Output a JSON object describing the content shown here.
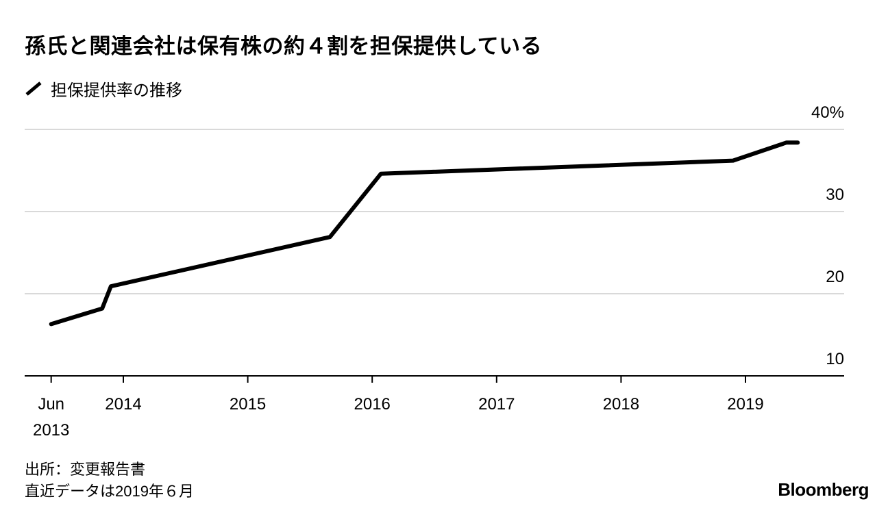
{
  "chart_data": {
    "type": "line",
    "title": "孫氏と関連会社は保有株の約４割を担保提供している",
    "legend": [
      "担保提供率の推移"
    ],
    "legend_placement": "top-left",
    "xlabel": "",
    "ylabel": "",
    "ylim": [
      10,
      40
    ],
    "yticks": [
      {
        "v": 10,
        "label": "10"
      },
      {
        "v": 20,
        "label": "20"
      },
      {
        "v": 30,
        "label": "30"
      },
      {
        "v": 40,
        "label": "40%"
      }
    ],
    "xticks": [
      {
        "v": 2013.42,
        "label": "Jun",
        "label2": "2013"
      },
      {
        "v": 2014,
        "label": "2014"
      },
      {
        "v": 2015,
        "label": "2015"
      },
      {
        "v": 2016,
        "label": "2016"
      },
      {
        "v": 2017,
        "label": "2017"
      },
      {
        "v": 2018,
        "label": "2018"
      },
      {
        "v": 2019,
        "label": "2019"
      }
    ],
    "grid": true,
    "series": [
      {
        "name": "担保提供率の推移",
        "x": [
          2013.42,
          2013.83,
          2013.9,
          2015.66,
          2016.07,
          2018.9,
          2019.33,
          2019.42
        ],
        "y": [
          16.3,
          18.2,
          20.9,
          26.9,
          34.6,
          36.2,
          38.4,
          38.4
        ]
      }
    ]
  },
  "footer": {
    "source": "出所：変更報告書",
    "note": "直近データは2019年６月",
    "logo": "Bloomberg"
  }
}
